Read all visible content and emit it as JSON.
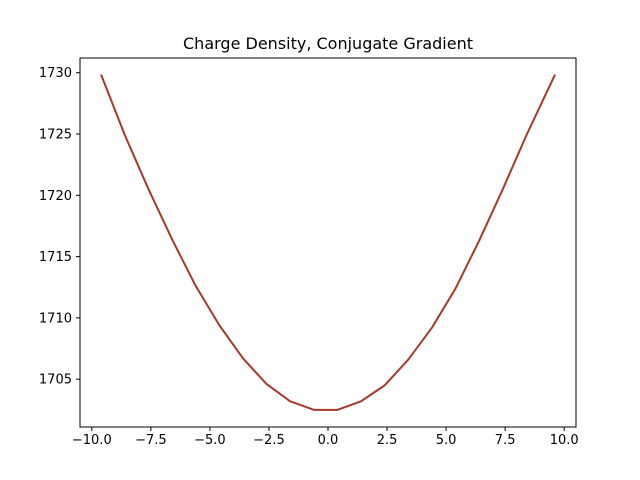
{
  "chart_data": {
    "type": "line",
    "title": "Charge Density, Conjugate Gradient",
    "xlabel": "",
    "ylabel": "",
    "xlim": [
      -10.5,
      10.5
    ],
    "ylim": [
      1701.1,
      1731.2
    ],
    "xticks": [
      -10.0,
      -7.5,
      -5.0,
      -2.5,
      0.0,
      2.5,
      5.0,
      7.5,
      10.0
    ],
    "xtick_labels": [
      "−10.0",
      "−7.5",
      "−5.0",
      "−2.5",
      "0.0",
      "2.5",
      "5.0",
      "7.5",
      "10.0"
    ],
    "yticks": [
      1705,
      1710,
      1715,
      1720,
      1725,
      1730
    ],
    "ytick_labels": [
      "1705",
      "1710",
      "1715",
      "1720",
      "1725",
      "1730"
    ],
    "grid": false,
    "legend": "none",
    "series": [
      {
        "color": "#a63a28",
        "x": [
          -9.6,
          -8.6,
          -7.6,
          -6.6,
          -5.6,
          -4.6,
          -3.6,
          -2.6,
          -1.6,
          -0.6,
          0.4,
          1.4,
          2.4,
          3.4,
          4.4,
          5.4,
          6.4,
          7.4,
          8.4,
          9.6
        ],
        "y": [
          1729.8,
          1724.9,
          1720.5,
          1716.4,
          1712.6,
          1709.4,
          1706.7,
          1704.6,
          1703.2,
          1702.5,
          1702.5,
          1703.2,
          1704.5,
          1706.6,
          1709.2,
          1712.4,
          1716.3,
          1720.5,
          1724.9,
          1729.8
        ]
      }
    ]
  }
}
